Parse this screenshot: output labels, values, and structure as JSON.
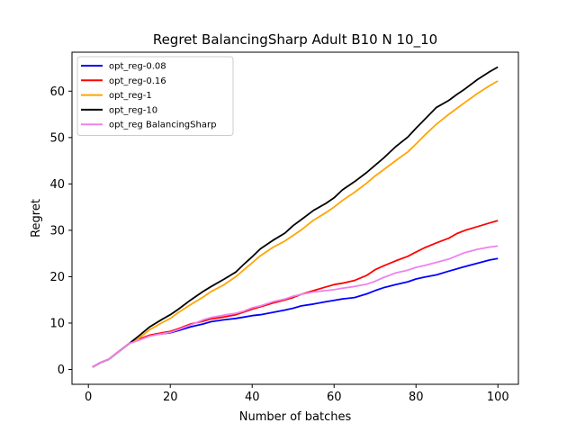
{
  "chart_data": {
    "type": "line",
    "title": "Regret BalancingSharp Adult B10 N 10_10",
    "xlabel": "Number of batches",
    "ylabel": "Regret",
    "xlim": [
      -4,
      105
    ],
    "ylim": [
      -3.2,
      68.4
    ],
    "xticks": [
      0,
      20,
      40,
      60,
      80,
      100
    ],
    "yticks": [
      0,
      10,
      20,
      30,
      40,
      50,
      60
    ],
    "legend_position": "upper-left",
    "series": [
      {
        "name": "opt_reg-0.08",
        "color": "#0000ff",
        "x": [
          1,
          3,
          5,
          7,
          10,
          12,
          15,
          18,
          20,
          22,
          25,
          28,
          30,
          33,
          36,
          38,
          40,
          42,
          45,
          48,
          50,
          52,
          55,
          58,
          60,
          62,
          65,
          68,
          70,
          72,
          75,
          78,
          80,
          82,
          85,
          88,
          90,
          92,
          95,
          98,
          100
        ],
        "y": [
          0.5,
          1.5,
          2.2,
          3.6,
          5.6,
          6.3,
          7.3,
          7.7,
          7.9,
          8.4,
          9.2,
          9.8,
          10.3,
          10.7,
          11.0,
          11.3,
          11.6,
          11.8,
          12.3,
          12.8,
          13.2,
          13.7,
          14.1,
          14.6,
          14.9,
          15.2,
          15.5,
          16.3,
          17.0,
          17.6,
          18.3,
          18.9,
          19.5,
          19.9,
          20.4,
          21.2,
          21.7,
          22.2,
          22.9,
          23.6,
          23.9
        ]
      },
      {
        "name": "opt_reg-0.16",
        "color": "#ff0000",
        "x": [
          1,
          3,
          5,
          7,
          10,
          12,
          15,
          18,
          20,
          22,
          25,
          28,
          30,
          33,
          36,
          38,
          40,
          42,
          45,
          48,
          50,
          52,
          55,
          58,
          60,
          62,
          65,
          68,
          70,
          72,
          75,
          78,
          80,
          82,
          85,
          88,
          90,
          92,
          95,
          98,
          100
        ],
        "y": [
          0.5,
          1.5,
          2.2,
          3.6,
          5.6,
          6.4,
          7.4,
          7.9,
          8.2,
          8.8,
          9.8,
          10.4,
          10.9,
          11.3,
          11.8,
          12.4,
          13.0,
          13.5,
          14.3,
          15.0,
          15.5,
          16.2,
          17.0,
          17.8,
          18.3,
          18.6,
          19.2,
          20.3,
          21.5,
          22.3,
          23.4,
          24.4,
          25.3,
          26.2,
          27.3,
          28.3,
          29.3,
          30.0,
          30.8,
          31.6,
          32.1
        ]
      },
      {
        "name": "opt_reg-1",
        "color": "#ffa500",
        "x": [
          1,
          3,
          5,
          7,
          10,
          12,
          15,
          18,
          20,
          22,
          25,
          28,
          30,
          33,
          36,
          38,
          40,
          42,
          45,
          48,
          50,
          52,
          55,
          58,
          60,
          62,
          65,
          68,
          70,
          72,
          75,
          78,
          80,
          82,
          85,
          88,
          90,
          92,
          95,
          98,
          100
        ],
        "y": [
          0.5,
          1.5,
          2.2,
          3.6,
          5.6,
          6.5,
          8.6,
          10.1,
          11.0,
          12.3,
          14.0,
          15.6,
          16.8,
          18.2,
          20.0,
          21.5,
          23.0,
          24.5,
          26.3,
          27.7,
          28.9,
          30.1,
          32.2,
          33.8,
          35.0,
          36.4,
          38.2,
          40.2,
          41.7,
          43.0,
          45.0,
          46.9,
          48.6,
          50.4,
          52.9,
          55.0,
          56.3,
          57.6,
          59.5,
          61.2,
          62.2
        ]
      },
      {
        "name": "opt_reg-10",
        "color": "#000000",
        "x": [
          1,
          3,
          5,
          7,
          10,
          12,
          15,
          18,
          20,
          22,
          25,
          28,
          30,
          33,
          36,
          38,
          40,
          42,
          45,
          48,
          50,
          52,
          55,
          58,
          60,
          62,
          65,
          68,
          70,
          72,
          75,
          78,
          80,
          82,
          85,
          88,
          90,
          92,
          95,
          98,
          100
        ],
        "y": [
          0.5,
          1.5,
          2.2,
          3.6,
          5.6,
          7.0,
          9.2,
          10.8,
          11.8,
          13.0,
          15.0,
          16.8,
          17.9,
          19.4,
          21.0,
          22.7,
          24.3,
          26.0,
          27.8,
          29.4,
          31.0,
          32.3,
          34.3,
          35.8,
          37.0,
          38.7,
          40.5,
          42.5,
          44.0,
          45.5,
          48.0,
          50.1,
          52.0,
          53.8,
          56.5,
          58.0,
          59.3,
          60.5,
          62.5,
          64.2,
          65.2
        ]
      },
      {
        "name": "opt_reg BalancingSharp",
        "color": "#ee82ee",
        "x": [
          1,
          3,
          5,
          7,
          10,
          12,
          15,
          18,
          20,
          22,
          25,
          28,
          30,
          33,
          36,
          38,
          40,
          42,
          45,
          48,
          50,
          52,
          55,
          58,
          60,
          62,
          65,
          68,
          70,
          72,
          75,
          78,
          80,
          82,
          85,
          88,
          90,
          92,
          95,
          98,
          100
        ],
        "y": [
          0.5,
          1.5,
          2.2,
          3.6,
          5.6,
          6.2,
          7.2,
          7.7,
          8.0,
          8.6,
          9.6,
          10.7,
          11.2,
          11.7,
          12.1,
          12.6,
          13.3,
          13.7,
          14.6,
          15.2,
          15.8,
          16.2,
          16.7,
          17.0,
          17.2,
          17.5,
          17.9,
          18.4,
          19.0,
          19.8,
          20.8,
          21.4,
          22.0,
          22.4,
          23.1,
          23.8,
          24.5,
          25.2,
          25.9,
          26.4,
          26.6
        ]
      }
    ]
  }
}
